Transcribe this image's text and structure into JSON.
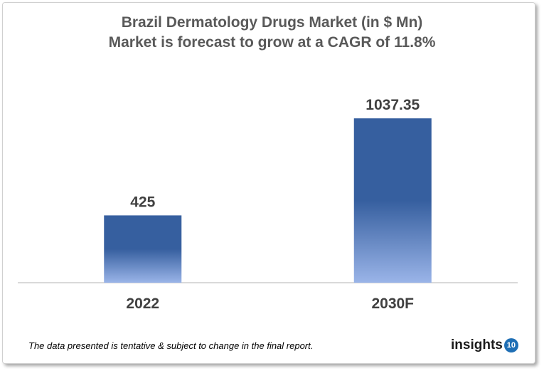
{
  "chart_data": {
    "type": "bar",
    "title": "Brazil Dermatology  Drugs Market (in $ Mn)",
    "subtitle": "Market is forecast to grow at a CAGR of 11.8%",
    "categories": [
      "2022",
      "2030F"
    ],
    "values": [
      425,
      1037.35
    ],
    "data_labels": [
      "425",
      "1037.35"
    ],
    "xlabel": "",
    "ylabel": "",
    "ylim": [
      0,
      1200
    ],
    "grid": false,
    "bar_color_top": "#365f9f",
    "bar_color_bottom": "#9ab4e8"
  },
  "footer": {
    "note": "The data presented is tentative & subject to change in the final report.",
    "logo_text": "insights",
    "logo_number": "10"
  }
}
